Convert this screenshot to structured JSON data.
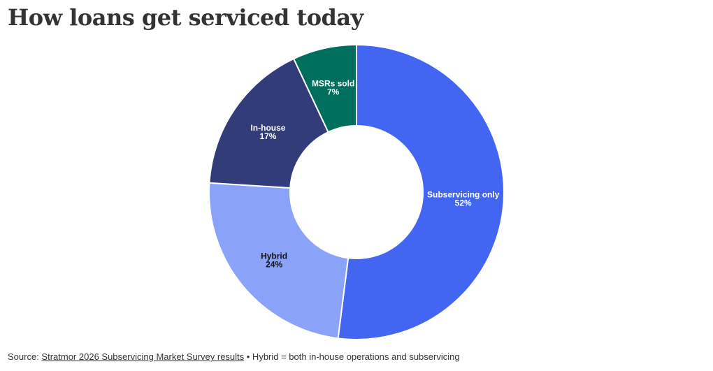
{
  "title": "How loans get serviced today",
  "chart_data": {
    "type": "pie",
    "donut": true,
    "categories": [
      "Subservicing only",
      "Hybrid",
      "In-house",
      "MSRs sold"
    ],
    "values": [
      52,
      24,
      17,
      7
    ],
    "value_labels": [
      "52%",
      "24%",
      "17%",
      "7%"
    ],
    "colors": [
      "#4266f1",
      "#8ba2f9",
      "#323c78",
      "#006e5c"
    ],
    "label_colors": [
      "#ffffff",
      "#111111",
      "#ffffff",
      "#ffffff"
    ],
    "start": "top",
    "direction": "clockwise"
  },
  "footer": {
    "source_prefix": "Source: ",
    "source_link": "Stratmor 2026 Subservicing Market Survey results",
    "note": " • Hybrid = both in-house operations and subservicing"
  }
}
